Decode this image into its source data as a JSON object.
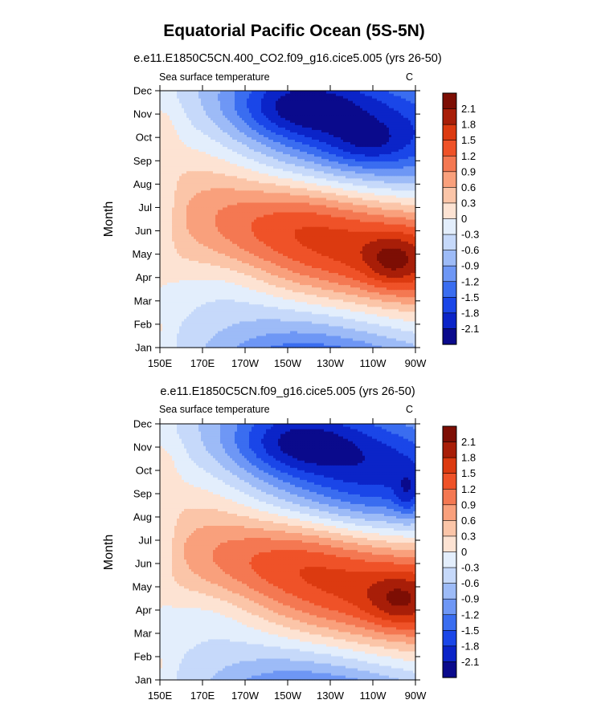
{
  "figure": {
    "title": "Equatorial Pacific Ocean (5S-5N)"
  },
  "palette": [
    "#0a0a8c",
    "#0b24c8",
    "#1a46e8",
    "#3a6df0",
    "#6e97f5",
    "#9dbbf7",
    "#c6d9fa",
    "#e3eefc",
    "#fde3d3",
    "#fbc5a8",
    "#f9a07c",
    "#f47852",
    "#ef5228",
    "#dc3a10",
    "#a81e08",
    "#7d0e04"
  ],
  "chart_data": [
    {
      "type": "heatmap",
      "subtitle": "e.e11.E1850C5CN.400_CO2.f09_g16.cice5.005 (yrs 26-50)",
      "left_label": "Sea surface temperature",
      "right_label": "C",
      "ylabel": "Month",
      "xlabel": "",
      "x_ticks": [
        "150E",
        "170E",
        "170W",
        "150W",
        "130W",
        "110W",
        "90W"
      ],
      "x_range_deg_east": [
        150,
        270
      ],
      "y_ticks": [
        "Jan",
        "Feb",
        "Mar",
        "Apr",
        "May",
        "Jun",
        "Jul",
        "Aug",
        "Sep",
        "Oct",
        "Nov",
        "Dec"
      ],
      "colorbar_levels": [
        "2.1",
        "1.8",
        "1.5",
        "1.2",
        "0.9",
        "0.6",
        "0.3",
        "0",
        "-0.3",
        "-0.6",
        "-0.9",
        "-1.2",
        "-1.5",
        "-1.8",
        "-2.1"
      ],
      "vmin": -2.4,
      "vmax": 2.4,
      "features": [
        {
          "peak": 1.7,
          "lon": 270,
          "month": 4.8,
          "sig_lon": 60,
          "sig_month": 1.6
        },
        {
          "peak": 0.6,
          "lon": 259,
          "month": 4.7,
          "sig_lon": 9,
          "sig_month": 0.8
        },
        {
          "peak": 0.9,
          "lon": 212,
          "month": 6.7,
          "sig_lon": 30,
          "sig_month": 1.3
        },
        {
          "peak": 0.35,
          "lon": 170,
          "month": 7.8,
          "sig_lon": 18,
          "sig_month": 1.6
        },
        {
          "peak": -1.75,
          "lon": 256,
          "month": 10.1,
          "sig_lon": 40,
          "sig_month": 1.8
        },
        {
          "peak": -0.35,
          "lon": 247,
          "month": 9.7,
          "sig_lon": 12,
          "sig_month": 0.6
        },
        {
          "peak": -1.0,
          "lon": 212,
          "month": 11.3,
          "sig_lon": 22,
          "sig_month": 1.0
        },
        {
          "peak": -0.9,
          "lon": 212,
          "month": 1.1,
          "sig_lon": 40,
          "sig_month": 1.9
        },
        {
          "peak": -0.3,
          "lon": 180,
          "month": 3.8,
          "sig_lon": 18,
          "sig_month": 1.0
        },
        {
          "peak": -0.3,
          "lon": 152,
          "month": 7.0,
          "sig_lon": 4,
          "sig_month": 1.5
        },
        {
          "peak": 0.25,
          "lon": 151,
          "month": 1.5,
          "sig_lon": 4,
          "sig_month": 1.0
        },
        {
          "peak": 0.25,
          "lon": 152,
          "month": 10.5,
          "sig_lon": 6,
          "sig_month": 1.0
        }
      ]
    },
    {
      "type": "heatmap",
      "subtitle": "e.e11.E1850C5CN.f09_g16.cice5.005 (yrs 26-50)",
      "left_label": "Sea surface temperature",
      "right_label": "C",
      "ylabel": "Month",
      "xlabel": "",
      "x_ticks": [
        "150E",
        "170E",
        "170W",
        "150W",
        "130W",
        "110W",
        "90W"
      ],
      "x_range_deg_east": [
        150,
        270
      ],
      "y_ticks": [
        "Jan",
        "Feb",
        "Mar",
        "Apr",
        "May",
        "Jun",
        "Jul",
        "Aug",
        "Sep",
        "Oct",
        "Nov",
        "Dec"
      ],
      "colorbar_levels": [
        "2.1",
        "1.8",
        "1.5",
        "1.2",
        "0.9",
        "0.6",
        "0.3",
        "0",
        "-0.3",
        "-0.6",
        "-0.9",
        "-1.2",
        "-1.5",
        "-1.8",
        "-2.1"
      ],
      "vmin": -2.4,
      "vmax": 2.4,
      "features": [
        {
          "peak": 1.7,
          "lon": 268,
          "month": 4.6,
          "sig_lon": 58,
          "sig_month": 1.7
        },
        {
          "peak": 0.55,
          "lon": 262,
          "month": 4.4,
          "sig_lon": 10,
          "sig_month": 0.8
        },
        {
          "peak": 0.9,
          "lon": 210,
          "month": 6.5,
          "sig_lon": 30,
          "sig_month": 1.3
        },
        {
          "peak": 0.35,
          "lon": 170,
          "month": 7.6,
          "sig_lon": 18,
          "sig_month": 1.6
        },
        {
          "peak": -1.8,
          "lon": 256,
          "month": 9.8,
          "sig_lon": 40,
          "sig_month": 1.9
        },
        {
          "peak": -0.5,
          "lon": 266,
          "month": 9.0,
          "sig_lon": 4,
          "sig_month": 0.7
        },
        {
          "peak": -1.0,
          "lon": 212,
          "month": 11.2,
          "sig_lon": 22,
          "sig_month": 1.0
        },
        {
          "peak": -0.85,
          "lon": 210,
          "month": 1.0,
          "sig_lon": 40,
          "sig_month": 1.9
        },
        {
          "peak": -0.35,
          "lon": 175,
          "month": 3.9,
          "sig_lon": 20,
          "sig_month": 1.0
        },
        {
          "peak": -0.3,
          "lon": 152,
          "month": 7.2,
          "sig_lon": 4,
          "sig_month": 1.4
        },
        {
          "peak": 0.25,
          "lon": 151,
          "month": 1.4,
          "sig_lon": 4,
          "sig_month": 1.0
        },
        {
          "peak": 0.25,
          "lon": 152,
          "month": 10.4,
          "sig_lon": 6,
          "sig_month": 1.0
        }
      ]
    }
  ]
}
